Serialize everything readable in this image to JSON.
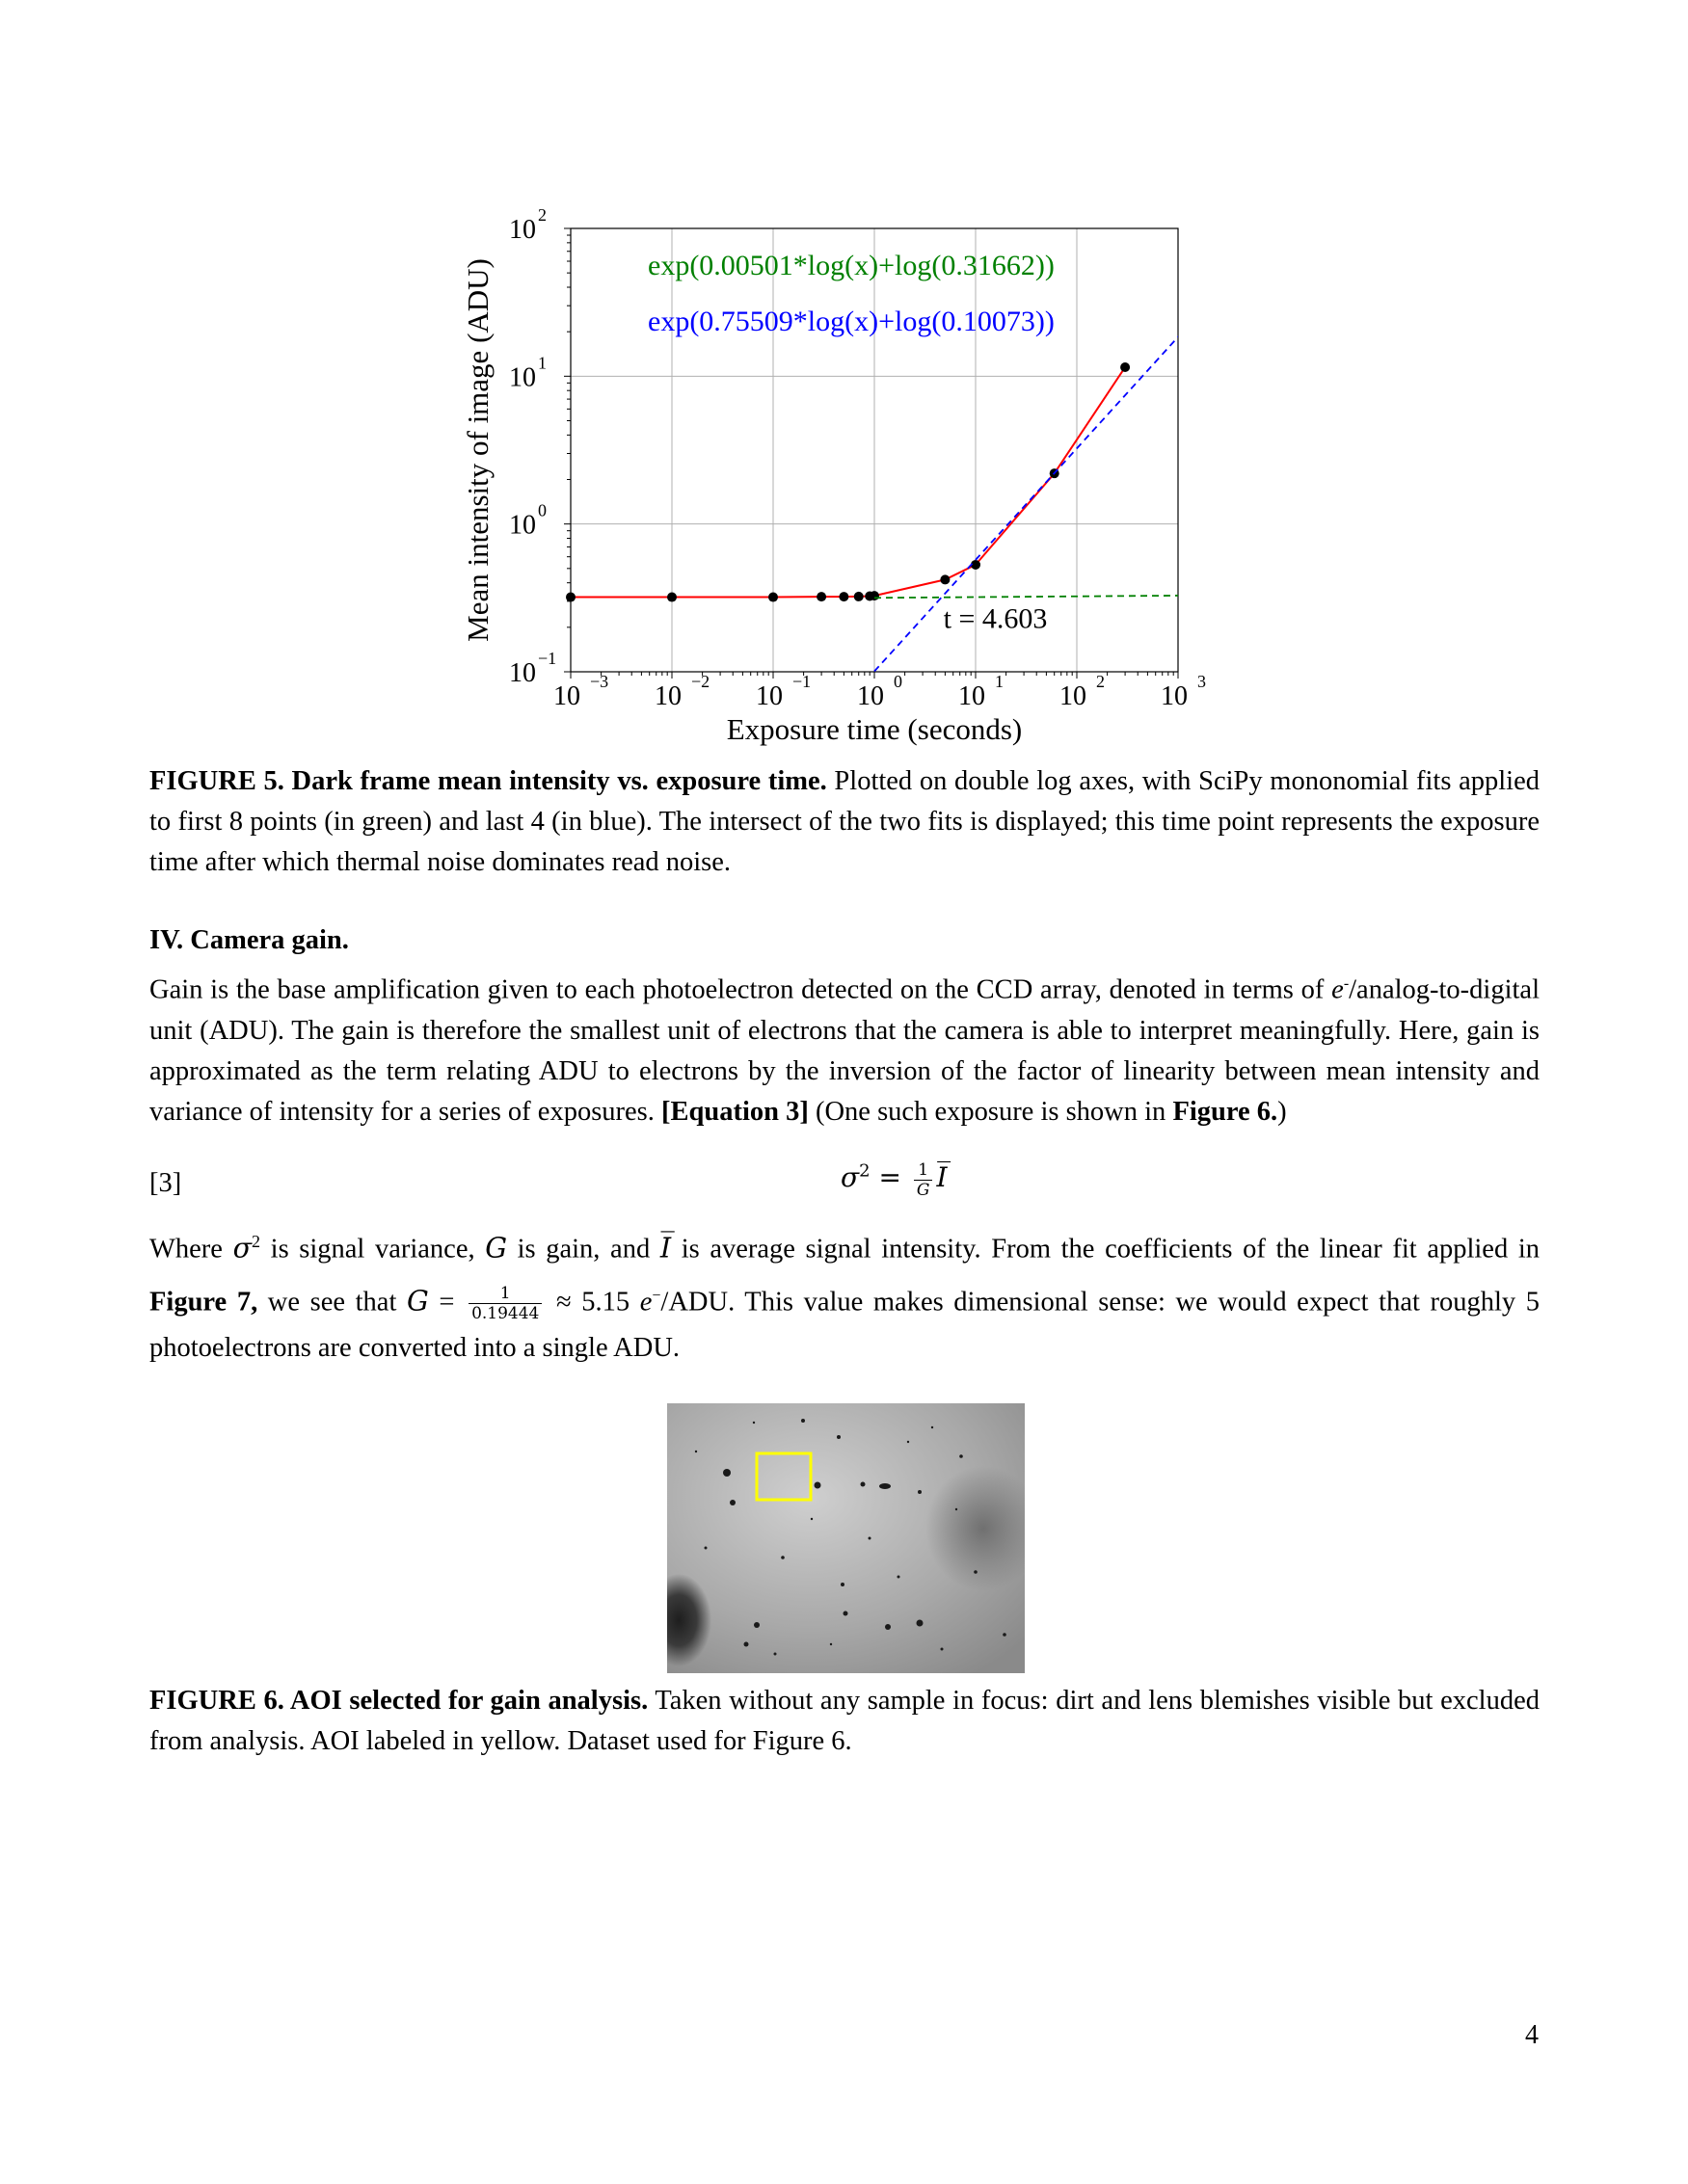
{
  "figure5": {
    "chart_data": {
      "type": "scatter",
      "xlabel": "Exposure time (seconds)",
      "ylabel": "Mean intensity of image (ADU)",
      "xscale": "log",
      "yscale": "log",
      "xlim": [
        0.001,
        1000
      ],
      "ylim": [
        0.1,
        100
      ],
      "grid": true,
      "x_ticks": [
        {
          "base": "10",
          "exp": "−3"
        },
        {
          "base": "10",
          "exp": "−2"
        },
        {
          "base": "10",
          "exp": "−1"
        },
        {
          "base": "10",
          "exp": "0"
        },
        {
          "base": "10",
          "exp": "1"
        },
        {
          "base": "10",
          "exp": "2"
        },
        {
          "base": "10",
          "exp": "3"
        }
      ],
      "y_ticks": [
        {
          "base": "10",
          "exp": "−1"
        },
        {
          "base": "10",
          "exp": "0"
        },
        {
          "base": "10",
          "exp": "1"
        },
        {
          "base": "10",
          "exp": "2"
        }
      ],
      "series": [
        {
          "color": "#ff0000",
          "line_style": "solid",
          "marker_color": "#000000",
          "x": [
            0.001,
            0.01,
            0.1,
            0.3,
            0.5,
            0.7,
            0.9,
            1.0,
            5.0,
            10.0,
            60.0,
            300.0
          ],
          "y": [
            0.32,
            0.32,
            0.32,
            0.322,
            0.322,
            0.323,
            0.325,
            0.327,
            0.42,
            0.53,
            2.2,
            11.5
          ]
        },
        {
          "name": "exp(0.00501*log(x)+log(0.31662))",
          "color": "#008000",
          "line_style": "dashed",
          "x": [
            1.0,
            1500
          ],
          "y": [
            0.3166,
            0.3284
          ]
        },
        {
          "name": "exp(0.75509*log(x)+log(0.10073))",
          "color": "#0000ff",
          "line_style": "dashed",
          "x": [
            1.0,
            1500
          ],
          "y": [
            0.1007,
            25.0
          ]
        }
      ],
      "legend_text": [
        {
          "text": "exp(0.00501*log(x)+log(0.31662))",
          "color": "#008000"
        },
        {
          "text": "exp(0.75509*log(x)+log(0.10073))",
          "color": "#0000ff"
        }
      ],
      "annotations": [
        {
          "text": "t = 4.603",
          "x": 4.603,
          "y": 0.3204
        }
      ]
    }
  },
  "figure5_caption": {
    "label": "FIGURE 5. Dark frame mean intensity vs. exposure time.",
    "text": " Plotted on double log axes, with SciPy mononomial fits applied to first 8 points (in green) and last 4 (in blue). The intersect of the two fits is displayed; this time point represents the exposure time after which thermal noise dominates read noise."
  },
  "section": {
    "heading": "IV.  Camera gain.",
    "p1_a": "Gain is the base amplification given to each photoelectron detected on the CCD array, denoted in terms of ",
    "p1_e": "e",
    "p1_sup": "-",
    "p1_b": "/analog-to-digital unit (ADU). The gain is therefore the smallest unit of electrons that the camera is able to interpret meaningfully. Here, gain is approximated as the term relating ADU to electrons by the inversion of the factor of linearity between mean intensity and variance of intensity for a series of exposures. ",
    "p1_eq": "[Equation 3]",
    "p1_c": " (One such exposure is shown in ",
    "p1_fig": "Figure 6.",
    "p1_d": ")",
    "eq_label": "[3]",
    "eq_lhs": "σ",
    "eq_sup": "2",
    "eq_equals": " = ",
    "eq_num": "1",
    "eq_den": "G",
    "eq_rhs": "I̅",
    "p2_a": "Where ",
    "p2_sigma": "σ",
    "p2_sup": "2",
    "p2_b": " is signal variance, ",
    "p2_G": "G",
    "p2_c": " is gain, and ",
    "p2_I": "I̅",
    "p2_d": " is average signal intensity. From the coefficients of the linear fit applied in ",
    "p2_fig": "Figure 7,",
    "p2_e": " we see that ",
    "p2_G2": "G",
    "p2_eq": " = ",
    "p2_num": "1",
    "p2_den": "0.19444",
    "p2_approx": " ≈ 5.15 ",
    "p2_unit_e": "e",
    "p2_unit_sup": "−",
    "p2_unit": "/ADU",
    "p2_f": ". This value makes dimensional sense: we would expect that roughly 5 photoelectrons are converted into a single ADU."
  },
  "figure6": {
    "aoi_color": "#ffff00"
  },
  "figure6_caption": {
    "label": "FIGURE 6. AOI selected for gain analysis.",
    "text": " Taken without any sample in focus: dirt and lens blemishes visible but excluded from analysis. AOI labeled in yellow. Dataset used for Figure 6."
  },
  "page_number": "4"
}
